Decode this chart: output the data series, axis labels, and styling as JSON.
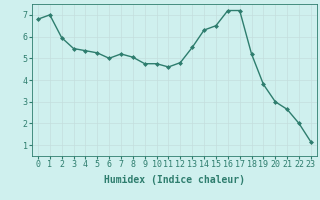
{
  "x": [
    0,
    1,
    2,
    3,
    4,
    5,
    6,
    7,
    8,
    9,
    10,
    11,
    12,
    13,
    14,
    15,
    16,
    17,
    18,
    19,
    20,
    21,
    22,
    23
  ],
  "y": [
    6.8,
    7.0,
    5.95,
    5.45,
    5.35,
    5.25,
    5.0,
    5.2,
    5.05,
    4.75,
    4.75,
    4.6,
    4.8,
    5.5,
    6.3,
    6.5,
    7.2,
    7.2,
    5.2,
    3.8,
    3.0,
    2.65,
    2.0,
    1.15
  ],
  "line_color": "#2e7d6e",
  "bg_color": "#cff0ee",
  "grid_color": "#c4dedd",
  "xlabel": "Humidex (Indice chaleur)",
  "xlim": [
    -0.5,
    23.5
  ],
  "ylim": [
    0.5,
    7.5
  ],
  "yticks": [
    1,
    2,
    3,
    4,
    5,
    6,
    7
  ],
  "xticks": [
    0,
    1,
    2,
    3,
    4,
    5,
    6,
    7,
    8,
    9,
    10,
    11,
    12,
    13,
    14,
    15,
    16,
    17,
    18,
    19,
    20,
    21,
    22,
    23
  ],
  "xlabel_fontsize": 7,
  "tick_fontsize": 6,
  "marker": "D",
  "marker_size": 2.0,
  "linewidth": 1.0
}
